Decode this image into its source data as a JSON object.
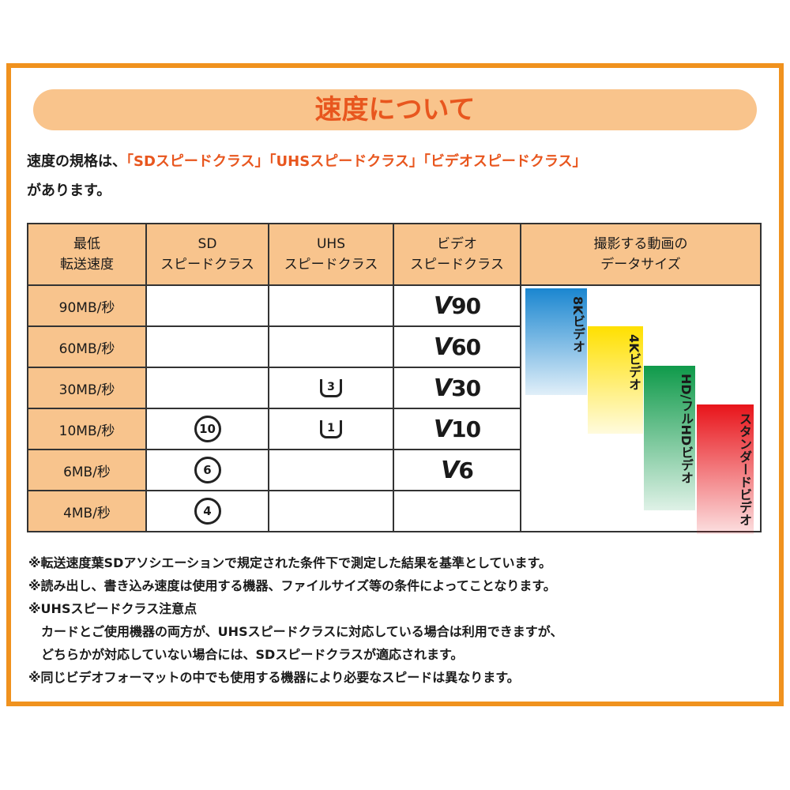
{
  "title": "速度について",
  "intro": {
    "prefix": "速度の規格は、",
    "highlights": [
      "「SDスピードクラス」",
      "「UHSスピードクラス」",
      "「ビデオスピードクラス」"
    ],
    "suffix": "があります。"
  },
  "table": {
    "headers": [
      [
        "最低",
        "転送速度"
      ],
      [
        "SD",
        "スピードクラス"
      ],
      [
        "UHS",
        "スピードクラス"
      ],
      [
        "ビデオ",
        "スピードクラス"
      ],
      [
        "撮影する動画の",
        "データサイズ"
      ]
    ],
    "rows": [
      {
        "speed": "90MB/秒",
        "sd": "",
        "uhs": "",
        "video": "90"
      },
      {
        "speed": "60MB/秒",
        "sd": "",
        "uhs": "",
        "video": "60"
      },
      {
        "speed": "30MB/秒",
        "sd": "",
        "uhs": "3",
        "video": "30"
      },
      {
        "speed": "10MB/秒",
        "sd": "10",
        "uhs": "1",
        "video": "10"
      },
      {
        "speed": "6MB/秒",
        "sd": "6",
        "uhs": "",
        "video": "6"
      },
      {
        "speed": "4MB/秒",
        "sd": "4",
        "uhs": "",
        "video": ""
      }
    ],
    "sizes": [
      {
        "label": "8Kビデオ",
        "color": "#1a86d0"
      },
      {
        "label": "4Kビデオ",
        "color": "#ffe000"
      },
      {
        "label": "HD/フルHDビデオ",
        "color": "#0f9a4a"
      },
      {
        "label": "スタンダードビデオ",
        "color": "#e8141a"
      }
    ]
  },
  "notes": [
    "※転送速度葉SDアソシエーションで規定された条件下で測定した結果を基準としています。",
    "※読み出し、書き込み速度は使用する機器、ファイルサイズ等の条件によってことなります。",
    "※UHSスピードクラス注意点",
    "カードとご使用機器の両方が、UHSスピードクラスに対応している場合は利用できますが、",
    "どちらかが対応していない場合には、SDスピードクラスが適応されます。",
    "※同じビデオフォーマットの中でも使用する機器により必要なスピードは異なります。"
  ],
  "colors": {
    "frame": "#f0921e",
    "accent": "#e8561e",
    "cell": "#f8c48d"
  }
}
